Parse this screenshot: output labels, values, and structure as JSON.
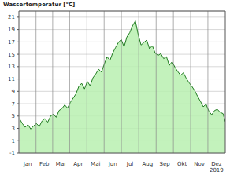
{
  "chart_data": {
    "type": "area",
    "y_label": "Wassertemperatur [°C]",
    "annotation": "2019",
    "x": [
      1,
      6,
      11,
      16,
      21,
      26,
      31,
      36,
      41,
      46,
      51,
      56,
      61,
      66,
      71,
      76,
      81,
      86,
      91,
      96,
      101,
      106,
      111,
      116,
      121,
      126,
      131,
      136,
      141,
      146,
      151,
      156,
      161,
      166,
      171,
      176,
      181,
      186,
      191,
      196,
      201,
      206,
      211,
      216,
      221,
      226,
      231,
      236,
      241,
      246,
      251,
      256,
      261,
      266,
      271,
      276,
      281,
      286,
      291,
      296,
      301,
      306,
      311,
      316,
      321,
      326,
      331,
      336,
      341,
      346,
      351,
      356,
      361,
      365
    ],
    "values": [
      4.6,
      3.8,
      3.2,
      3.6,
      2.9,
      3.4,
      3.8,
      3.3,
      4.2,
      4.6,
      4.0,
      5.0,
      5.3,
      4.8,
      5.9,
      6.2,
      6.8,
      6.3,
      7.2,
      7.9,
      8.6,
      9.8,
      10.3,
      9.4,
      10.6,
      9.9,
      11.2,
      11.8,
      12.6,
      12.1,
      13.4,
      14.6,
      14.0,
      15.2,
      16.1,
      16.9,
      17.4,
      16.2,
      17.8,
      18.5,
      19.6,
      20.4,
      18.2,
      16.5,
      16.9,
      17.3,
      15.9,
      16.4,
      15.2,
      14.8,
      15.1,
      14.3,
      14.6,
      13.2,
      13.8,
      12.9,
      12.2,
      11.6,
      12.0,
      11.1,
      10.4,
      9.8,
      9.1,
      8.2,
      7.4,
      6.5,
      6.9,
      5.8,
      5.2,
      5.9,
      6.1,
      5.6,
      5.4,
      4.1
    ],
    "color": "#1f7a1f",
    "xlim": [
      0,
      365
    ],
    "xticks": [
      {
        "value": 15.5,
        "label": "Jan"
      },
      {
        "value": 45,
        "label": "Feb"
      },
      {
        "value": 74.5,
        "label": "Mar"
      },
      {
        "value": 105,
        "label": "Apr"
      },
      {
        "value": 135.5,
        "label": "Mai"
      },
      {
        "value": 166,
        "label": "Jun"
      },
      {
        "value": 196.5,
        "label": "Jul"
      },
      {
        "value": 227.5,
        "label": "Aug"
      },
      {
        "value": 258,
        "label": "Sep"
      },
      {
        "value": 288.5,
        "label": "Okt"
      },
      {
        "value": 319,
        "label": "Nov"
      },
      {
        "value": 349.5,
        "label": "Dez"
      }
    ],
    "ylim": [
      -1,
      22
    ],
    "yticks": [
      -1,
      1,
      3,
      5,
      7,
      9,
      11,
      13,
      15,
      17,
      19,
      21
    ],
    "grid": true
  }
}
